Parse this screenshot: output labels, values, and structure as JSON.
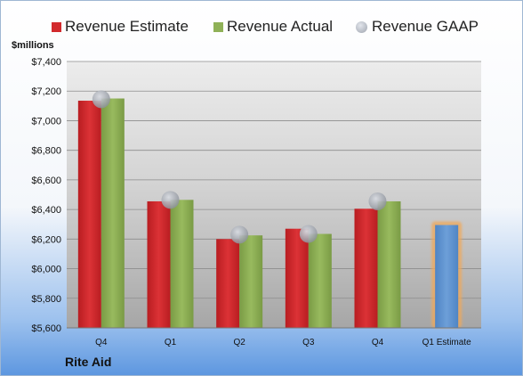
{
  "chart_data": {
    "type": "bar",
    "unit_label": "$millions",
    "company": "Rite Aid",
    "categories": [
      "Q4",
      "Q1",
      "Q2",
      "Q3",
      "Q4",
      "Q1 Estimate"
    ],
    "ylim": [
      5600,
      7400
    ],
    "y_ticks": [
      "$5,600",
      "$5,800",
      "$6,000",
      "$6,200",
      "$6,400",
      "$6,600",
      "$6,800",
      "$7,000",
      "$7,200",
      "$7,400"
    ],
    "y_tick_values": [
      5600,
      5800,
      6000,
      6200,
      6400,
      6600,
      6800,
      7000,
      7200,
      7400
    ],
    "grid": true,
    "legend_position": "top",
    "series": [
      {
        "name": "Revenue Estimate",
        "color": "#d22a2d",
        "values": [
          7135,
          6455,
          6200,
          6270,
          6405,
          6295
        ]
      },
      {
        "name": "Revenue Actual",
        "color": "#8fb157",
        "values": [
          7150,
          6465,
          6225,
          6235,
          6455,
          null
        ]
      },
      {
        "name": "Revenue GAAP",
        "color": "#b4b8c0",
        "values": [
          7145,
          6465,
          6230,
          6235,
          6455,
          null
        ]
      }
    ],
    "estimate_bar_color": "#5f93cf",
    "estimate_bar_glow": "#f0a858"
  }
}
